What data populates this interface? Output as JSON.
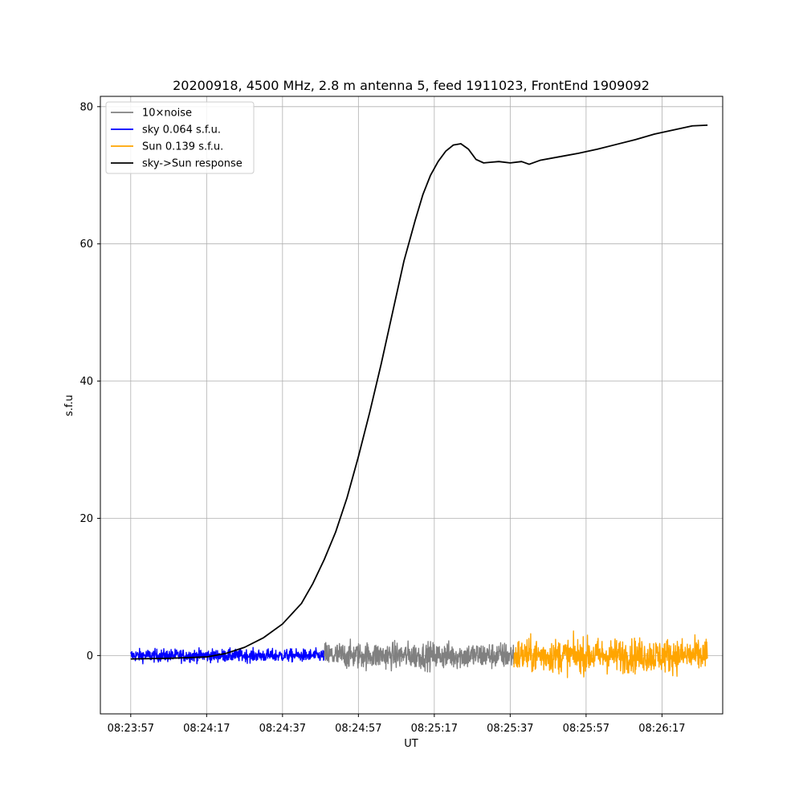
{
  "chart_data": {
    "type": "line",
    "title": "20200918, 4500 MHz, 2.8 m antenna 5, feed 1911023, FrontEnd 1909092",
    "xlabel": "UT",
    "ylabel": "s.f.u",
    "x_unit": "UT time (HH:MM:SS)",
    "xlim": [
      "08:23:49",
      "08:26:33"
    ],
    "ylim": [
      -8.5,
      81.5
    ],
    "x_ticks": [
      "08:23:57",
      "08:24:17",
      "08:24:37",
      "08:24:57",
      "08:25:17",
      "08:25:37",
      "08:25:57",
      "08:26:17"
    ],
    "y_ticks": [
      0,
      20,
      40,
      60,
      80
    ],
    "grid": true,
    "legend_position": "top-left",
    "series": [
      {
        "name": "10×noise",
        "color": "#808080",
        "x_range": [
          "08:24:48",
          "08:25:38"
        ],
        "mean": 0,
        "approx_amplitude": 2.5,
        "note_values": "noise trace around 0, roughly ±2.5 s.f.u., peaks up to ±3.5"
      },
      {
        "name": "sky 0.064 s.f.u.",
        "color": "#0000ff",
        "x_range": [
          "08:23:57",
          "08:24:48"
        ],
        "mean": 0,
        "approx_amplitude": 1.2
      },
      {
        "name": "Sun 0.139 s.f.u.",
        "color": "#ffa500",
        "x_range": [
          "08:25:38",
          "08:26:29"
        ],
        "mean": 0,
        "approx_amplitude": 3.2
      },
      {
        "name": "sky->Sun response",
        "color": "#000000",
        "x": [
          "08:23:57",
          "08:24:07",
          "08:24:17",
          "08:24:22",
          "08:24:27",
          "08:24:32",
          "08:24:37",
          "08:24:42",
          "08:24:45",
          "08:24:48",
          "08:24:51",
          "08:24:54",
          "08:24:57",
          "08:25:00",
          "08:25:03",
          "08:25:06",
          "08:25:09",
          "08:25:12",
          "08:25:14",
          "08:25:16",
          "08:25:18",
          "08:25:20",
          "08:25:22",
          "08:25:24",
          "08:25:26",
          "08:25:28",
          "08:25:30",
          "08:25:32",
          "08:25:34",
          "08:25:37",
          "08:25:40",
          "08:25:42",
          "08:25:45",
          "08:25:50",
          "08:25:55",
          "08:26:00",
          "08:26:05",
          "08:26:10",
          "08:26:15",
          "08:26:20",
          "08:26:25",
          "08:26:29"
        ],
        "values": [
          -0.5,
          -0.4,
          -0.2,
          0.3,
          1.2,
          2.6,
          4.6,
          7.6,
          10.5,
          14.0,
          18.0,
          23.0,
          29.0,
          35.5,
          42.5,
          50.0,
          57.5,
          63.5,
          67.2,
          70.0,
          72.0,
          73.5,
          74.4,
          74.6,
          73.8,
          72.3,
          71.8,
          71.9,
          72.0,
          71.8,
          72.0,
          71.6,
          72.2,
          72.7,
          73.2,
          73.8,
          74.5,
          75.2,
          76.0,
          76.6,
          77.2,
          77.3
        ]
      }
    ]
  }
}
